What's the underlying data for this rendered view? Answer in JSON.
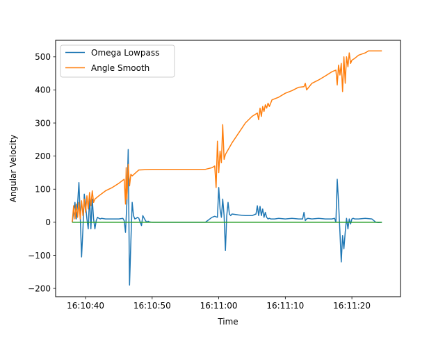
{
  "chart_data": {
    "type": "line",
    "title": "",
    "xlabel": "Time",
    "ylabel": "Angular Velocity",
    "xlim": [
      "16:10:35.5",
      "16:11:27.3"
    ],
    "ylim": [
      -225,
      550
    ],
    "x_ticks": [
      "16:10:40",
      "16:10:50",
      "16:11:00",
      "16:11:10",
      "16:11:20"
    ],
    "y_ticks": [
      -200,
      -100,
      0,
      100,
      200,
      300,
      400,
      500
    ],
    "y_tick_labels": [
      "−200",
      "−100",
      "0",
      "100",
      "200",
      "300",
      "400",
      "500"
    ],
    "grid": false,
    "legend": {
      "placement": "top-left",
      "entries": [
        "Omega Lowpass",
        "Angle Smooth"
      ]
    },
    "series": [
      {
        "name": "Omega Lowpass",
        "color": "#1f77b4",
        "x": [
          "16:10:38.0",
          "16:10:38.2",
          "16:10:38.4",
          "16:10:38.6",
          "16:10:38.8",
          "16:10:39.0",
          "16:10:39.2",
          "16:10:39.4",
          "16:10:39.6",
          "16:10:39.8",
          "16:10:40.0",
          "16:10:40.2",
          "16:10:40.4",
          "16:10:40.6",
          "16:10:40.8",
          "16:10:41.0",
          "16:10:41.2",
          "16:10:41.4",
          "16:10:41.6",
          "16:10:41.8",
          "16:10:42.0",
          "16:10:42.2",
          "16:10:42.4",
          "16:10:43.0",
          "16:10:44.0",
          "16:10:45.0",
          "16:10:45.6",
          "16:10:45.8",
          "16:10:46.0",
          "16:10:46.2",
          "16:10:46.4",
          "16:10:46.6",
          "16:10:46.8",
          "16:10:47.0",
          "16:10:47.2",
          "16:10:47.4",
          "16:10:47.6",
          "16:10:47.8",
          "16:10:48.0",
          "16:10:48.4",
          "16:10:48.6",
          "16:10:48.8",
          "16:10:49.0",
          "16:10:49.2",
          "16:10:49.4",
          "16:10:49.6",
          "16:10:50.0",
          "16:10:52.0",
          "16:10:54.0",
          "16:10:56.0",
          "16:10:58.0",
          "16:10:59.0",
          "16:10:59.4",
          "16:10:59.8",
          "16:11:00.0",
          "16:11:00.2",
          "16:11:00.4",
          "16:11:00.6",
          "16:11:00.8",
          "16:11:01.0",
          "16:11:01.2",
          "16:11:01.4",
          "16:11:01.6",
          "16:11:01.8",
          "16:11:02.0",
          "16:11:03.0",
          "16:11:04.0",
          "16:11:05.0",
          "16:11:05.6",
          "16:11:05.8",
          "16:11:06.0",
          "16:11:06.2",
          "16:11:06.4",
          "16:11:06.6",
          "16:11:06.8",
          "16:11:07.0",
          "16:11:07.2",
          "16:11:07.4",
          "16:11:07.6",
          "16:11:07.8",
          "16:11:08.0",
          "16:11:08.4",
          "16:11:09.0",
          "16:11:10.0",
          "16:11:11.0",
          "16:11:12.0",
          "16:11:12.6",
          "16:11:12.8",
          "16:11:13.0",
          "16:11:13.2",
          "16:11:13.4",
          "16:11:14.0",
          "16:11:15.0",
          "16:11:16.0",
          "16:11:17.0",
          "16:11:17.4",
          "16:11:17.6",
          "16:11:17.8",
          "16:11:18.0",
          "16:11:18.2",
          "16:11:18.4",
          "16:11:18.6",
          "16:11:18.8",
          "16:11:19.0",
          "16:11:19.2",
          "16:11:19.4",
          "16:11:19.6",
          "16:11:19.8",
          "16:11:20.0",
          "16:11:20.2",
          "16:11:20.4",
          "16:11:21.0",
          "16:11:22.0",
          "16:11:23.0",
          "16:11:23.6",
          "16:11:24.0",
          "16:11:24.5"
        ],
        "y": [
          0,
          30,
          60,
          10,
          55,
          120,
          20,
          -105,
          -20,
          85,
          50,
          10,
          -20,
          80,
          -20,
          70,
          10,
          -20,
          5,
          15,
          12,
          10,
          12,
          10,
          10,
          10,
          12,
          5,
          -30,
          60,
          220,
          -190,
          -60,
          60,
          20,
          10,
          12,
          15,
          12,
          -10,
          20,
          12,
          5,
          0,
          3,
          1,
          0,
          0,
          0,
          0,
          0,
          15,
          18,
          15,
          105,
          40,
          15,
          70,
          20,
          -85,
          20,
          60,
          25,
          20,
          25,
          22,
          20,
          20,
          25,
          50,
          20,
          48,
          20,
          40,
          15,
          30,
          15,
          10,
          12,
          10,
          10,
          10,
          12,
          10,
          12,
          10,
          10,
          30,
          5,
          10,
          12,
          10,
          12,
          10,
          10,
          12,
          0,
          130,
          60,
          -30,
          -120,
          -40,
          -80,
          -30,
          12,
          -20,
          10,
          -5,
          10,
          12,
          10,
          10,
          12,
          10,
          0,
          -1,
          0
        ]
      },
      {
        "name": "Angle Smooth",
        "color": "#ff7f0e",
        "x": [
          "16:10:38.0",
          "16:10:38.2",
          "16:10:38.4",
          "16:10:38.6",
          "16:10:38.8",
          "16:10:39.0",
          "16:10:39.2",
          "16:10:39.4",
          "16:10:39.6",
          "16:10:39.8",
          "16:10:40.0",
          "16:10:40.2",
          "16:10:40.4",
          "16:10:40.6",
          "16:10:40.8",
          "16:10:41.0",
          "16:10:41.2",
          "16:10:41.4",
          "16:10:42.0",
          "16:10:43.0",
          "16:10:44.0",
          "16:10:45.0",
          "16:10:45.8",
          "16:10:46.0",
          "16:10:46.1",
          "16:10:46.2",
          "16:10:46.4",
          "16:10:46.6",
          "16:10:46.8",
          "16:10:47.0",
          "16:10:48.0",
          "16:10:50.0",
          "16:10:52.0",
          "16:10:54.0",
          "16:10:56.0",
          "16:10:58.0",
          "16:10:59.0",
          "16:10:59.4",
          "16:10:59.6",
          "16:10:59.8",
          "16:11:00.0",
          "16:11:00.2",
          "16:11:00.4",
          "16:11:00.6",
          "16:11:00.8",
          "16:11:01.0",
          "16:11:02.0",
          "16:11:03.0",
          "16:11:04.0",
          "16:11:05.0",
          "16:11:05.8",
          "16:11:06.0",
          "16:11:06.2",
          "16:11:06.4",
          "16:11:06.6",
          "16:11:06.8",
          "16:11:07.0",
          "16:11:07.2",
          "16:11:07.4",
          "16:11:07.6",
          "16:11:07.8",
          "16:11:08.0",
          "16:11:09.0",
          "16:11:10.0",
          "16:11:11.0",
          "16:11:12.0",
          "16:11:12.8",
          "16:11:13.0",
          "16:11:13.2",
          "16:11:14.0",
          "16:11:15.0",
          "16:11:16.0",
          "16:11:17.0",
          "16:11:17.6",
          "16:11:17.8",
          "16:11:18.0",
          "16:11:18.2",
          "16:11:18.4",
          "16:11:18.6",
          "16:11:18.8",
          "16:11:19.0",
          "16:11:19.2",
          "16:11:19.4",
          "16:11:19.6",
          "16:11:19.8",
          "16:11:20.0",
          "16:11:20.4",
          "16:11:21.0",
          "16:11:22.0",
          "16:11:22.5",
          "16:11:23.0",
          "16:11:24.0",
          "16:11:24.5"
        ],
        "y": [
          0,
          50,
          10,
          55,
          15,
          60,
          10,
          65,
          20,
          70,
          30,
          80,
          40,
          90,
          50,
          95,
          60,
          70,
          80,
          95,
          105,
          118,
          130,
          55,
          165,
          70,
          175,
          110,
          145,
          140,
          158,
          160,
          160,
          160,
          160,
          160,
          165,
          170,
          105,
          245,
          150,
          215,
          180,
          295,
          190,
          205,
          240,
          270,
          300,
          320,
          330,
          310,
          345,
          320,
          350,
          335,
          355,
          345,
          360,
          350,
          360,
          370,
          378,
          390,
          398,
          408,
          410,
          420,
          400,
          420,
          430,
          442,
          455,
          460,
          415,
          475,
          445,
          480,
          395,
          500,
          420,
          500,
          470,
          512,
          480,
          490,
          495,
          505,
          512,
          518,
          518,
          518,
          518
        ]
      },
      {
        "name": "",
        "color": "#2ca02c",
        "x": [
          "16:10:38.0",
          "16:11:24.5"
        ],
        "y": [
          0,
          0
        ]
      }
    ]
  }
}
